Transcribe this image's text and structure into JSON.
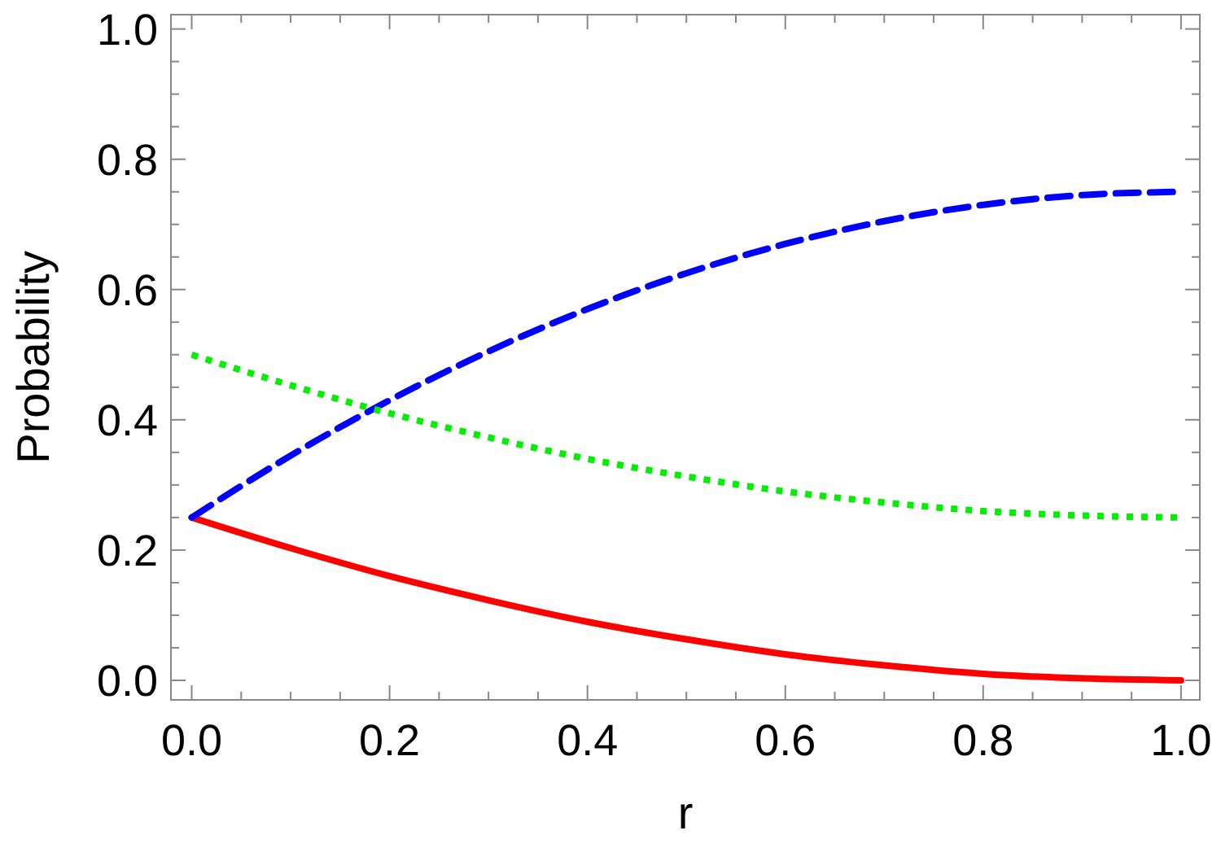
{
  "chart_data": {
    "type": "line",
    "xlabel": "r",
    "ylabel": "Probability",
    "x": [
      0,
      0.1,
      0.2,
      0.3,
      0.4,
      0.5,
      0.6,
      0.7,
      0.8,
      0.9,
      1
    ],
    "series": [
      {
        "color": "#ff0000",
        "line_style": "solid",
        "values": [
          0.25,
          0.203,
          0.16,
          0.123,
          0.09,
          0.063,
          0.04,
          0.023,
          0.01,
          0.003,
          0
        ]
      },
      {
        "color": "#0000ff",
        "line_style": "dashed",
        "values": [
          0.25,
          0.345,
          0.43,
          0.505,
          0.57,
          0.625,
          0.67,
          0.705,
          0.73,
          0.745,
          0.75
        ]
      },
      {
        "color": "#00ee00",
        "line_style": "dotted",
        "values": [
          0.5,
          0.453,
          0.41,
          0.373,
          0.34,
          0.313,
          0.29,
          0.273,
          0.26,
          0.253,
          0.25
        ]
      }
    ],
    "xlim": [
      -0.021,
      1.019
    ],
    "ylim": [
      -0.03,
      1.022
    ],
    "xticks": [
      {
        "value": 0,
        "label": "0.0"
      },
      {
        "value": 0.05,
        "label": null
      },
      {
        "value": 0.1,
        "label": null
      },
      {
        "value": 0.15,
        "label": null
      },
      {
        "value": 0.2,
        "label": "0.2"
      },
      {
        "value": 0.25,
        "label": null
      },
      {
        "value": 0.3,
        "label": null
      },
      {
        "value": 0.35,
        "label": null
      },
      {
        "value": 0.4,
        "label": "0.4"
      },
      {
        "value": 0.45,
        "label": null
      },
      {
        "value": 0.5,
        "label": null
      },
      {
        "value": 0.55,
        "label": null
      },
      {
        "value": 0.6,
        "label": "0.6"
      },
      {
        "value": 0.65,
        "label": null
      },
      {
        "value": 0.7,
        "label": null
      },
      {
        "value": 0.75,
        "label": null
      },
      {
        "value": 0.8,
        "label": "0.8"
      },
      {
        "value": 0.85,
        "label": null
      },
      {
        "value": 0.9,
        "label": null
      },
      {
        "value": 0.95,
        "label": null
      },
      {
        "value": 1,
        "label": "1.0"
      }
    ],
    "yticks": [
      {
        "value": 0,
        "label": "0.0"
      },
      {
        "value": 0.05,
        "label": null
      },
      {
        "value": 0.1,
        "label": null
      },
      {
        "value": 0.15,
        "label": null
      },
      {
        "value": 0.2,
        "label": "0.2"
      },
      {
        "value": 0.25,
        "label": null
      },
      {
        "value": 0.3,
        "label": null
      },
      {
        "value": 0.35,
        "label": null
      },
      {
        "value": 0.4,
        "label": "0.4"
      },
      {
        "value": 0.45,
        "label": null
      },
      {
        "value": 0.5,
        "label": null
      },
      {
        "value": 0.55,
        "label": null
      },
      {
        "value": 0.6,
        "label": "0.6"
      },
      {
        "value": 0.65,
        "label": null
      },
      {
        "value": 0.7,
        "label": null
      },
      {
        "value": 0.75,
        "label": null
      },
      {
        "value": 0.8,
        "label": "0.8"
      },
      {
        "value": 0.85,
        "label": null
      },
      {
        "value": 0.9,
        "label": null
      },
      {
        "value": 0.95,
        "label": null
      },
      {
        "value": 1,
        "label": "1.0"
      }
    ],
    "grid": false,
    "marker": "none"
  }
}
